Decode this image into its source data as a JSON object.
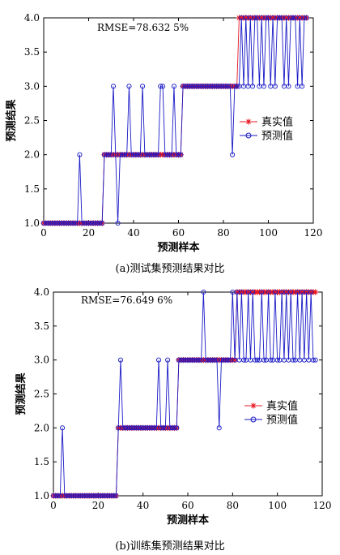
{
  "chart_data": [
    {
      "type": "line",
      "caption": "(a)测试集预测结果对比",
      "annotation": "RMSE=78.632 5%",
      "xlabel": "预测样本",
      "ylabel": "预测结果",
      "xlim": [
        0,
        120
      ],
      "ylim": [
        1.0,
        4.0
      ],
      "xticks": [
        "0",
        "20",
        "40",
        "60",
        "80",
        "100",
        "120"
      ],
      "yticks": [
        "1.0",
        "1.5",
        "2.0",
        "2.5",
        "3.0",
        "3.5",
        "4.0"
      ],
      "legend_position": "center-right",
      "series": [
        {
          "name": "真实值",
          "color": "#e8141e",
          "marker": "star",
          "values": [
            1,
            1,
            1,
            1,
            1,
            1,
            1,
            1,
            1,
            1,
            1,
            1,
            1,
            1,
            1,
            1,
            1,
            1,
            1,
            1,
            1,
            1,
            1,
            1,
            1,
            1,
            1,
            2,
            2,
            2,
            2,
            2,
            2,
            2,
            2,
            2,
            2,
            2,
            2,
            2,
            2,
            2,
            2,
            2,
            2,
            2,
            2,
            2,
            2,
            2,
            2,
            2,
            2,
            2,
            2,
            2,
            2,
            2,
            2,
            2,
            2,
            2,
            3,
            3,
            3,
            3,
            3,
            3,
            3,
            3,
            3,
            3,
            3,
            3,
            3,
            3,
            3,
            3,
            3,
            3,
            3,
            3,
            3,
            3,
            3,
            3,
            3,
            4,
            4,
            4,
            4,
            4,
            4,
            4,
            4,
            4,
            4,
            4,
            4,
            4,
            4,
            4,
            4,
            4,
            4,
            4,
            4,
            4,
            4,
            4,
            4,
            4,
            4,
            4,
            4,
            4,
            4,
            4
          ]
        },
        {
          "name": "预测值",
          "color": "#1a1ac8",
          "marker": "circle",
          "values": [
            1,
            1,
            1,
            1,
            1,
            1,
            1,
            1,
            1,
            1,
            1,
            1,
            1,
            1,
            1,
            1,
            2,
            1,
            1,
            1,
            1,
            1,
            1,
            1,
            1,
            1,
            1,
            2,
            2,
            2,
            2,
            3,
            2,
            1,
            2,
            2,
            2,
            2,
            3,
            2,
            2,
            2,
            2,
            2,
            3,
            2,
            2,
            2,
            2,
            2,
            2,
            2,
            3,
            3,
            2,
            2,
            2,
            2,
            3,
            2,
            2,
            2,
            3,
            3,
            3,
            3,
            3,
            3,
            3,
            3,
            3,
            3,
            3,
            3,
            3,
            3,
            3,
            3,
            3,
            3,
            3,
            3,
            3,
            3,
            2,
            3,
            3,
            3,
            4,
            3,
            4,
            3,
            4,
            3,
            4,
            4,
            3,
            4,
            3,
            4,
            4,
            3,
            4,
            3,
            4,
            4,
            4,
            3,
            4,
            3,
            4,
            4,
            4,
            3,
            4,
            3,
            4,
            4
          ]
        }
      ]
    },
    {
      "type": "line",
      "caption": "(b)训练集预测结果对比",
      "annotation": "RMSE=76.649 6%",
      "xlabel": "预测样本",
      "ylabel": "预测结果",
      "xlim": [
        0,
        120
      ],
      "ylim": [
        1.0,
        4.0
      ],
      "xticks": [
        "0",
        "20",
        "40",
        "60",
        "80",
        "100",
        "120"
      ],
      "yticks": [
        "1.0",
        "1.5",
        "2.0",
        "2.5",
        "3.0",
        "3.5",
        "4.0"
      ],
      "legend_position": "center-right",
      "series": [
        {
          "name": "真实值",
          "color": "#e8141e",
          "marker": "star",
          "values": [
            1,
            1,
            1,
            1,
            1,
            1,
            1,
            1,
            1,
            1,
            1,
            1,
            1,
            1,
            1,
            1,
            1,
            1,
            1,
            1,
            1,
            1,
            1,
            1,
            1,
            1,
            1,
            1,
            1,
            2,
            2,
            2,
            2,
            2,
            2,
            2,
            2,
            2,
            2,
            2,
            2,
            2,
            2,
            2,
            2,
            2,
            2,
            2,
            2,
            2,
            2,
            2,
            2,
            2,
            2,
            2,
            3,
            3,
            3,
            3,
            3,
            3,
            3,
            3,
            3,
            3,
            3,
            3,
            3,
            3,
            3,
            3,
            3,
            3,
            3,
            3,
            3,
            3,
            3,
            3,
            3,
            3,
            4,
            4,
            4,
            4,
            4,
            4,
            4,
            4,
            4,
            4,
            4,
            4,
            4,
            4,
            4,
            4,
            4,
            4,
            4,
            4,
            4,
            4,
            4,
            4,
            4,
            4,
            4,
            4,
            4,
            4,
            4,
            4,
            4,
            4,
            4,
            4
          ]
        },
        {
          "name": "预测值",
          "color": "#1a1ac8",
          "marker": "circle",
          "values": [
            1,
            1,
            1,
            1,
            2,
            1,
            1,
            1,
            1,
            1,
            1,
            1,
            1,
            1,
            1,
            1,
            1,
            1,
            1,
            1,
            1,
            1,
            1,
            1,
            1,
            1,
            1,
            1,
            1,
            2,
            3,
            2,
            2,
            2,
            2,
            2,
            2,
            2,
            2,
            2,
            2,
            2,
            2,
            2,
            2,
            2,
            2,
            3,
            2,
            2,
            2,
            3,
            2,
            2,
            2,
            2,
            3,
            3,
            3,
            3,
            3,
            3,
            3,
            3,
            3,
            3,
            3,
            4,
            3,
            3,
            3,
            3,
            3,
            3,
            2,
            3,
            3,
            3,
            3,
            3,
            4,
            3,
            4,
            3,
            4,
            3,
            3,
            4,
            3,
            4,
            3,
            3,
            3,
            4,
            3,
            3,
            4,
            3,
            3,
            4,
            3,
            3,
            4,
            3,
            4,
            3,
            4,
            3,
            3,
            4,
            3,
            4,
            3,
            4,
            3,
            4,
            3,
            3
          ]
        }
      ]
    }
  ]
}
